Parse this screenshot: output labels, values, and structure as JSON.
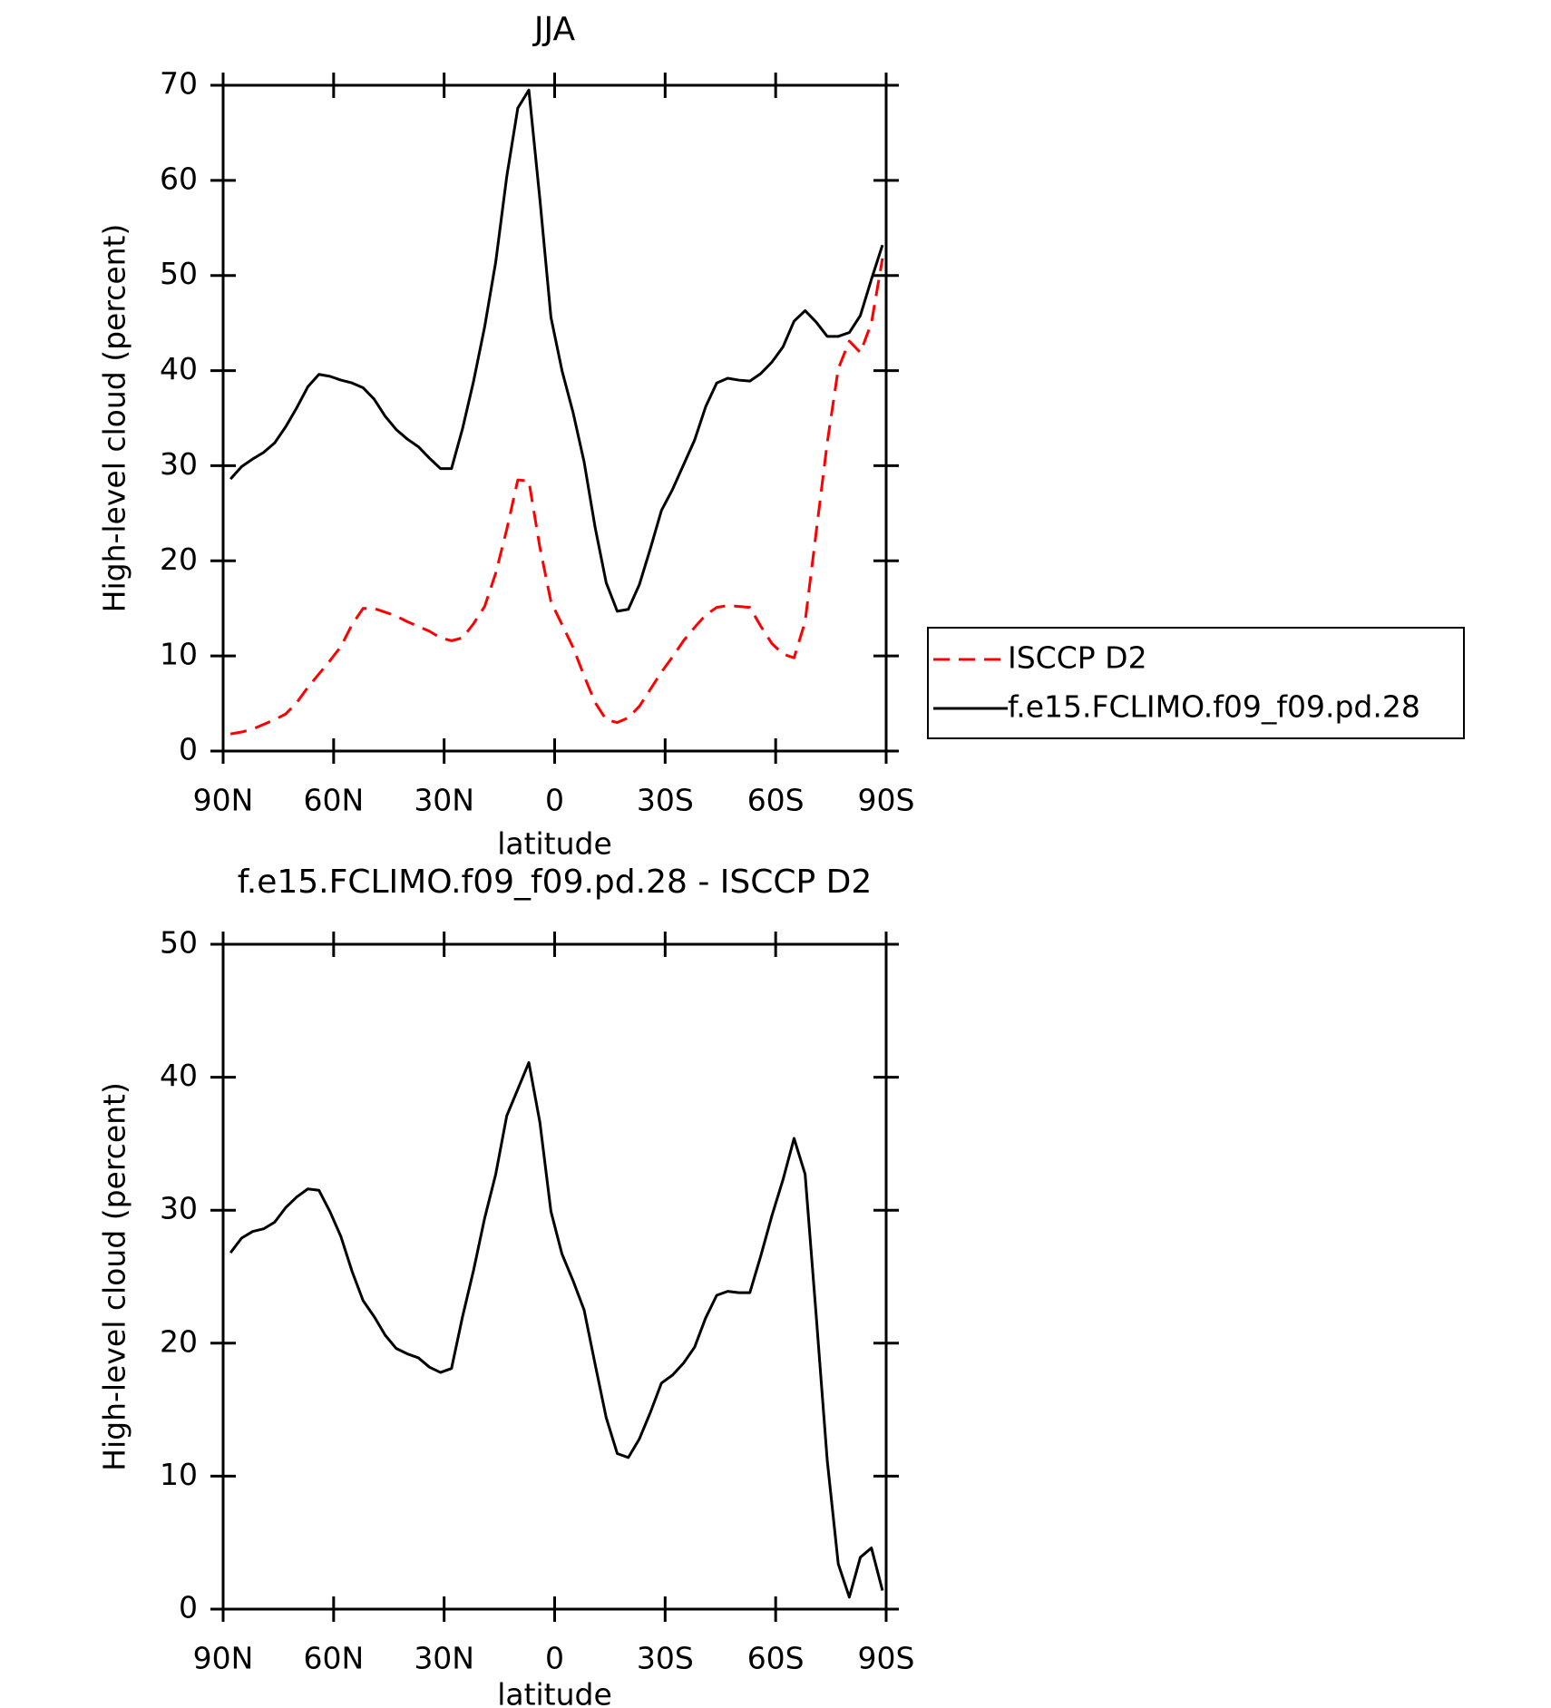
{
  "chart_data": [
    {
      "type": "line",
      "title": "JJA",
      "xlabel": "latitude",
      "ylabel": "High-level cloud (percent)",
      "x": [
        88,
        85,
        82,
        79,
        76,
        73,
        70,
        67,
        64,
        61,
        58,
        55,
        52,
        49,
        46,
        43,
        40,
        37,
        34,
        31,
        28,
        25,
        22,
        19,
        16,
        13,
        10,
        7,
        4,
        1,
        -2,
        -5,
        -8,
        -11,
        -14,
        -17,
        -20,
        -23,
        -26,
        -29,
        -32,
        -35,
        -38,
        -41,
        -44,
        -47,
        -50,
        -53,
        -56,
        -59,
        -62,
        -65,
        -68,
        -71,
        -74,
        -77,
        -80,
        -83,
        -86,
        -89
      ],
      "xlim": [
        90,
        -90
      ],
      "xticks": [
        {
          "value": 90,
          "label": "90N"
        },
        {
          "value": 60,
          "label": "60N"
        },
        {
          "value": 30,
          "label": "30N"
        },
        0,
        {
          "value": -30,
          "label": "30S"
        },
        {
          "value": -60,
          "label": "60S"
        },
        {
          "value": -90,
          "label": "90S"
        }
      ],
      "ylim": [
        0,
        70
      ],
      "yticks": [
        0,
        10,
        20,
        30,
        40,
        50,
        60,
        70
      ],
      "legend": "right",
      "series": [
        {
          "name": "ISCCP D2",
          "color": "#ff0000",
          "line_style": "dashed",
          "values": [
            1.8,
            2.0,
            2.3,
            2.8,
            3.3,
            3.9,
            5.1,
            6.7,
            8.1,
            9.5,
            11.0,
            13.3,
            15.0,
            15.0,
            14.6,
            14.2,
            13.6,
            13.1,
            12.6,
            11.9,
            11.6,
            11.9,
            13.4,
            15.2,
            18.7,
            23.3,
            28.5,
            28.4,
            21.4,
            15.7,
            13.3,
            10.9,
            7.9,
            5.1,
            3.3,
            3.0,
            3.5,
            4.7,
            6.5,
            8.3,
            9.9,
            11.6,
            13.0,
            14.3,
            15.1,
            15.3,
            15.2,
            15.1,
            13.1,
            11.3,
            10.2,
            9.8,
            13.6,
            23.0,
            32.4,
            40.2,
            43.1,
            41.9,
            45.0,
            51.8
          ]
        },
        {
          "name": "f.e15.FCLIMO.f09_f09.pd.28",
          "color": "#000000",
          "line_style": "solid",
          "values": [
            28.6,
            29.9,
            30.7,
            31.4,
            32.4,
            34.1,
            36.1,
            38.3,
            39.6,
            39.4,
            39.0,
            38.7,
            38.2,
            37.0,
            35.2,
            33.8,
            32.8,
            32.0,
            30.8,
            29.7,
            29.7,
            33.9,
            38.9,
            44.6,
            51.4,
            60.4,
            67.6,
            69.5,
            58.0,
            45.6,
            40.0,
            35.6,
            30.4,
            23.5,
            17.7,
            14.7,
            14.9,
            17.5,
            21.3,
            25.3,
            27.5,
            30.1,
            32.7,
            36.2,
            38.7,
            39.2,
            39.0,
            38.9,
            39.7,
            40.9,
            42.5,
            45.2,
            46.3,
            45.1,
            43.6,
            43.6,
            44.0,
            45.8,
            49.6,
            53.2
          ]
        }
      ]
    },
    {
      "type": "line",
      "title": "f.e15.FCLIMO.f09_f09.pd.28 - ISCCP D2",
      "xlabel": "latitude",
      "ylabel": "High-level cloud (percent)",
      "x": [
        88,
        85,
        82,
        79,
        76,
        73,
        70,
        67,
        64,
        61,
        58,
        55,
        52,
        49,
        46,
        43,
        40,
        37,
        34,
        31,
        28,
        25,
        22,
        19,
        16,
        13,
        10,
        7,
        4,
        1,
        -2,
        -5,
        -8,
        -11,
        -14,
        -17,
        -20,
        -23,
        -26,
        -29,
        -32,
        -35,
        -38,
        -41,
        -44,
        -47,
        -50,
        -53,
        -56,
        -59,
        -62,
        -65,
        -68,
        -71,
        -74,
        -77,
        -80,
        -83,
        -86,
        -89
      ],
      "xlim": [
        90,
        -90
      ],
      "xticks": [
        {
          "value": 90,
          "label": "90N"
        },
        {
          "value": 60,
          "label": "60N"
        },
        {
          "value": 30,
          "label": "30N"
        },
        0,
        {
          "value": -30,
          "label": "30S"
        },
        {
          "value": -60,
          "label": "60S"
        },
        {
          "value": -90,
          "label": "90S"
        }
      ],
      "ylim": [
        0,
        50
      ],
      "yticks": [
        0,
        10,
        20,
        30,
        40,
        50
      ],
      "series": [
        {
          "color": "#000000",
          "line_style": "solid",
          "values": [
            26.8,
            27.9,
            28.4,
            28.6,
            29.1,
            30.2,
            31.0,
            31.6,
            31.5,
            29.9,
            28.0,
            25.4,
            23.2,
            22.0,
            20.6,
            19.6,
            19.2,
            18.9,
            18.2,
            17.8,
            18.1,
            22.0,
            25.5,
            29.4,
            32.7,
            37.1,
            39.1,
            41.1,
            36.6,
            29.9,
            26.7,
            24.7,
            22.5,
            18.4,
            14.4,
            11.7,
            11.4,
            12.8,
            14.8,
            17.0,
            17.6,
            18.5,
            19.7,
            21.9,
            23.6,
            23.9,
            23.8,
            23.8,
            26.6,
            29.6,
            32.3,
            35.4,
            32.7,
            22.1,
            11.2,
            3.4,
            0.9,
            3.9,
            4.6,
            1.4
          ]
        }
      ]
    }
  ]
}
